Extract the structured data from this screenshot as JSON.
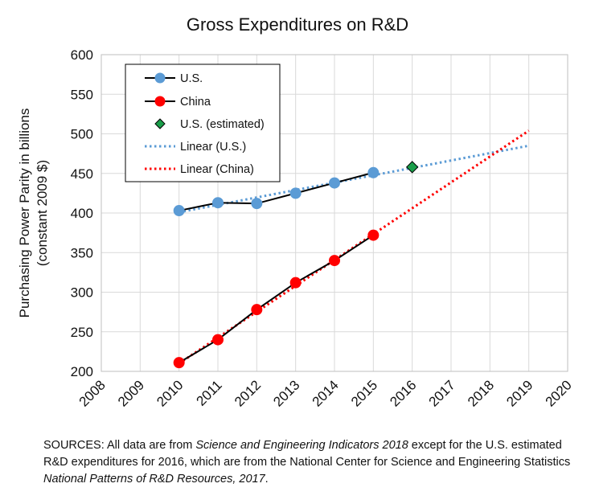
{
  "chart_data": {
    "type": "line",
    "title": "Gross Expenditures on R&D",
    "ylabel_line1": "Purchasing Power Parity  in billions",
    "ylabel_line2": "(constant 2009 $)",
    "xlabel": "",
    "xlim": [
      2008,
      2020
    ],
    "ylim": [
      200,
      600
    ],
    "x_ticks": [
      "2008",
      "2009",
      "2010",
      "2011",
      "2012",
      "2013",
      "2014",
      "2015",
      "2016",
      "2017",
      "2018",
      "2019",
      "2020"
    ],
    "y_ticks": [
      "200",
      "250",
      "300",
      "350",
      "400",
      "450",
      "500",
      "550",
      "600"
    ],
    "grid": true,
    "legend_position": "top-left",
    "series": [
      {
        "name": "U.S.",
        "style": "line-marker",
        "color": "#000000",
        "marker_color": "#5b9bd5",
        "x": [
          2010,
          2011,
          2012,
          2013,
          2014,
          2015
        ],
        "values": [
          403,
          413,
          412,
          425,
          438,
          451
        ]
      },
      {
        "name": "China",
        "style": "line-marker",
        "color": "#000000",
        "marker_color": "#ff0000",
        "x": [
          2010,
          2011,
          2012,
          2013,
          2014,
          2015
        ],
        "values": [
          211,
          240,
          278,
          312,
          340,
          372
        ]
      },
      {
        "name": "U.S. (estimated)",
        "style": "diamond",
        "color": "#1a9e4a",
        "x": [
          2016
        ],
        "values": [
          458
        ]
      },
      {
        "name": "Linear (U.S.)",
        "style": "dotted",
        "color": "#5b9bd5",
        "x": [
          2010,
          2019
        ],
        "values": [
          401,
          485
        ]
      },
      {
        "name": "Linear (China)",
        "style": "dotted",
        "color": "#ff0000",
        "x": [
          2010,
          2019
        ],
        "values": [
          210,
          504
        ]
      }
    ]
  },
  "source_note": {
    "prefix": "SOURCES: All data are from ",
    "italic1": "Science and Engineering Indicators 2018",
    "middle": " except for the U.S. estimated R&D expenditures for 2016, which are from the National Center for Science and Engineering Statistics ",
    "italic2": "National Patterns of R&D Resources, 2017",
    "suffix": "."
  }
}
